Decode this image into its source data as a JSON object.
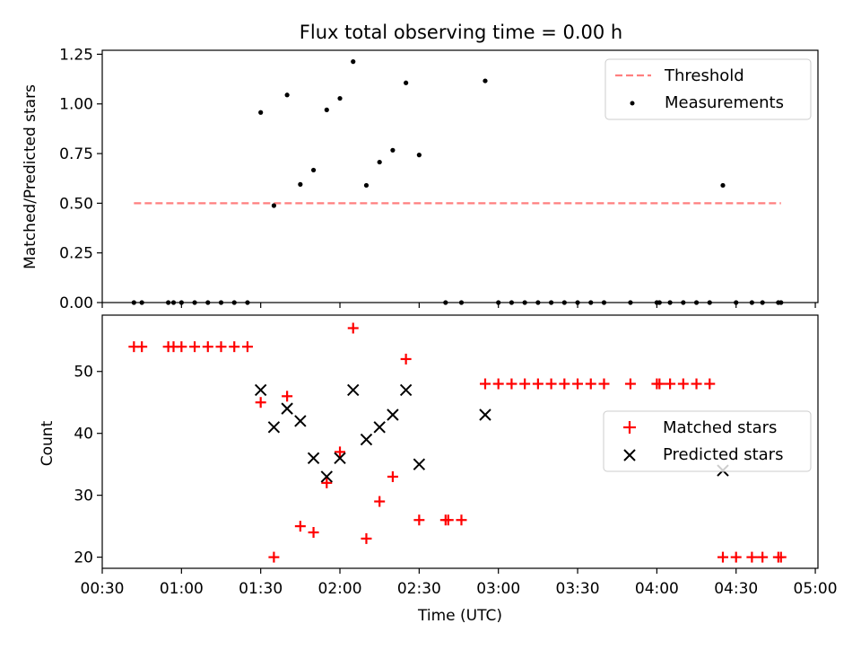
{
  "title": "Flux total observing time = 0.00 h",
  "chart_data": [
    {
      "type": "scatter",
      "ylabel": "Matched/Predicted stars",
      "ylim": [
        0,
        1.27
      ],
      "yticks": [
        "0.00",
        "0.25",
        "0.50",
        "0.75",
        "1.00",
        "1.25"
      ],
      "ytick_values": [
        0,
        0.25,
        0.5,
        0.75,
        1.0,
        1.25
      ],
      "legend": {
        "position": "top-right",
        "entries": [
          "Threshold",
          "Measurements"
        ]
      },
      "threshold": {
        "name": "Threshold",
        "value": 0.5,
        "x_start": "00:42",
        "x_end": "04:47",
        "color": "#ff7f7f"
      },
      "series": [
        {
          "name": "Measurements",
          "color": "#000000",
          "points": [
            [
              "00:42",
              0
            ],
            [
              "00:45",
              0
            ],
            [
              "00:55",
              0
            ],
            [
              "00:57",
              0
            ],
            [
              "01:00",
              0
            ],
            [
              "01:05",
              0
            ],
            [
              "01:10",
              0
            ],
            [
              "01:15",
              0
            ],
            [
              "01:20",
              0
            ],
            [
              "01:25",
              0
            ],
            [
              "01:30",
              0.957
            ],
            [
              "01:35",
              0.488
            ],
            [
              "01:40",
              1.045
            ],
            [
              "01:45",
              0.595
            ],
            [
              "01:50",
              0.667
            ],
            [
              "01:55",
              0.97
            ],
            [
              "02:00",
              1.028
            ],
            [
              "02:05",
              1.213
            ],
            [
              "02:10",
              0.59
            ],
            [
              "02:15",
              0.707
            ],
            [
              "02:20",
              0.767
            ],
            [
              "02:25",
              1.106
            ],
            [
              "02:30",
              0.743
            ],
            [
              "02:40",
              0
            ],
            [
              "02:46",
              0
            ],
            [
              "02:55",
              1.116
            ],
            [
              "03:00",
              0
            ],
            [
              "03:05",
              0
            ],
            [
              "03:10",
              0
            ],
            [
              "03:15",
              0
            ],
            [
              "03:20",
              0
            ],
            [
              "03:25",
              0
            ],
            [
              "03:30",
              0
            ],
            [
              "03:35",
              0
            ],
            [
              "03:40",
              0
            ],
            [
              "03:50",
              0
            ],
            [
              "04:00",
              0
            ],
            [
              "04:01",
              0
            ],
            [
              "04:05",
              0
            ],
            [
              "04:10",
              0
            ],
            [
              "04:15",
              0
            ],
            [
              "04:20",
              0
            ],
            [
              "04:25",
              0.59
            ],
            [
              "04:30",
              0
            ],
            [
              "04:36",
              0
            ],
            [
              "04:40",
              0
            ],
            [
              "04:46",
              0
            ],
            [
              "04:47",
              0
            ]
          ]
        }
      ]
    },
    {
      "type": "scatter",
      "xlabel": "Time (UTC)",
      "ylabel": "Count",
      "xlim": [
        "00:30",
        "05:01"
      ],
      "ylim": [
        18.2,
        59.1
      ],
      "xticks": [
        "00:30",
        "01:00",
        "01:30",
        "02:00",
        "02:30",
        "03:00",
        "03:30",
        "04:00",
        "04:30",
        "05:00"
      ],
      "yticks": [
        "20",
        "30",
        "40",
        "50"
      ],
      "ytick_values": [
        20,
        30,
        40,
        50
      ],
      "legend": {
        "position": "center-right",
        "entries": [
          "Matched stars",
          "Predicted stars"
        ]
      },
      "series": [
        {
          "name": "Matched stars",
          "marker": "+",
          "color": "#ff0000",
          "points": [
            [
              "00:42",
              54
            ],
            [
              "00:45",
              54
            ],
            [
              "00:55",
              54
            ],
            [
              "00:57",
              54
            ],
            [
              "01:00",
              54
            ],
            [
              "01:05",
              54
            ],
            [
              "01:10",
              54
            ],
            [
              "01:15",
              54
            ],
            [
              "01:20",
              54
            ],
            [
              "01:25",
              54
            ],
            [
              "01:30",
              45
            ],
            [
              "01:35",
              20
            ],
            [
              "01:40",
              46
            ],
            [
              "01:45",
              25
            ],
            [
              "01:50",
              24
            ],
            [
              "01:55",
              32
            ],
            [
              "02:00",
              37
            ],
            [
              "02:05",
              57
            ],
            [
              "02:10",
              23
            ],
            [
              "02:15",
              29
            ],
            [
              "02:20",
              33
            ],
            [
              "02:25",
              52
            ],
            [
              "02:30",
              26
            ],
            [
              "02:40",
              26
            ],
            [
              "02:41",
              26
            ],
            [
              "02:46",
              26
            ],
            [
              "02:55",
              48
            ],
            [
              "03:00",
              48
            ],
            [
              "03:05",
              48
            ],
            [
              "03:10",
              48
            ],
            [
              "03:15",
              48
            ],
            [
              "03:20",
              48
            ],
            [
              "03:25",
              48
            ],
            [
              "03:30",
              48
            ],
            [
              "03:35",
              48
            ],
            [
              "03:40",
              48
            ],
            [
              "03:50",
              48
            ],
            [
              "04:00",
              48
            ],
            [
              "04:01",
              48
            ],
            [
              "04:05",
              48
            ],
            [
              "04:10",
              48
            ],
            [
              "04:15",
              48
            ],
            [
              "04:20",
              48
            ],
            [
              "04:25",
              20
            ],
            [
              "04:30",
              20
            ],
            [
              "04:36",
              20
            ],
            [
              "04:40",
              20
            ],
            [
              "04:46",
              20
            ],
            [
              "04:47",
              20
            ]
          ]
        },
        {
          "name": "Predicted stars",
          "marker": "x",
          "color": "#000000",
          "points": [
            [
              "01:30",
              47
            ],
            [
              "01:35",
              41
            ],
            [
              "01:40",
              44
            ],
            [
              "01:45",
              42
            ],
            [
              "01:50",
              36
            ],
            [
              "01:55",
              33
            ],
            [
              "02:00",
              36
            ],
            [
              "02:05",
              47
            ],
            [
              "02:10",
              39
            ],
            [
              "02:15",
              41
            ],
            [
              "02:20",
              43
            ],
            [
              "02:25",
              47
            ],
            [
              "02:30",
              35
            ],
            [
              "02:55",
              43
            ],
            [
              "04:25",
              34
            ]
          ]
        }
      ]
    }
  ]
}
